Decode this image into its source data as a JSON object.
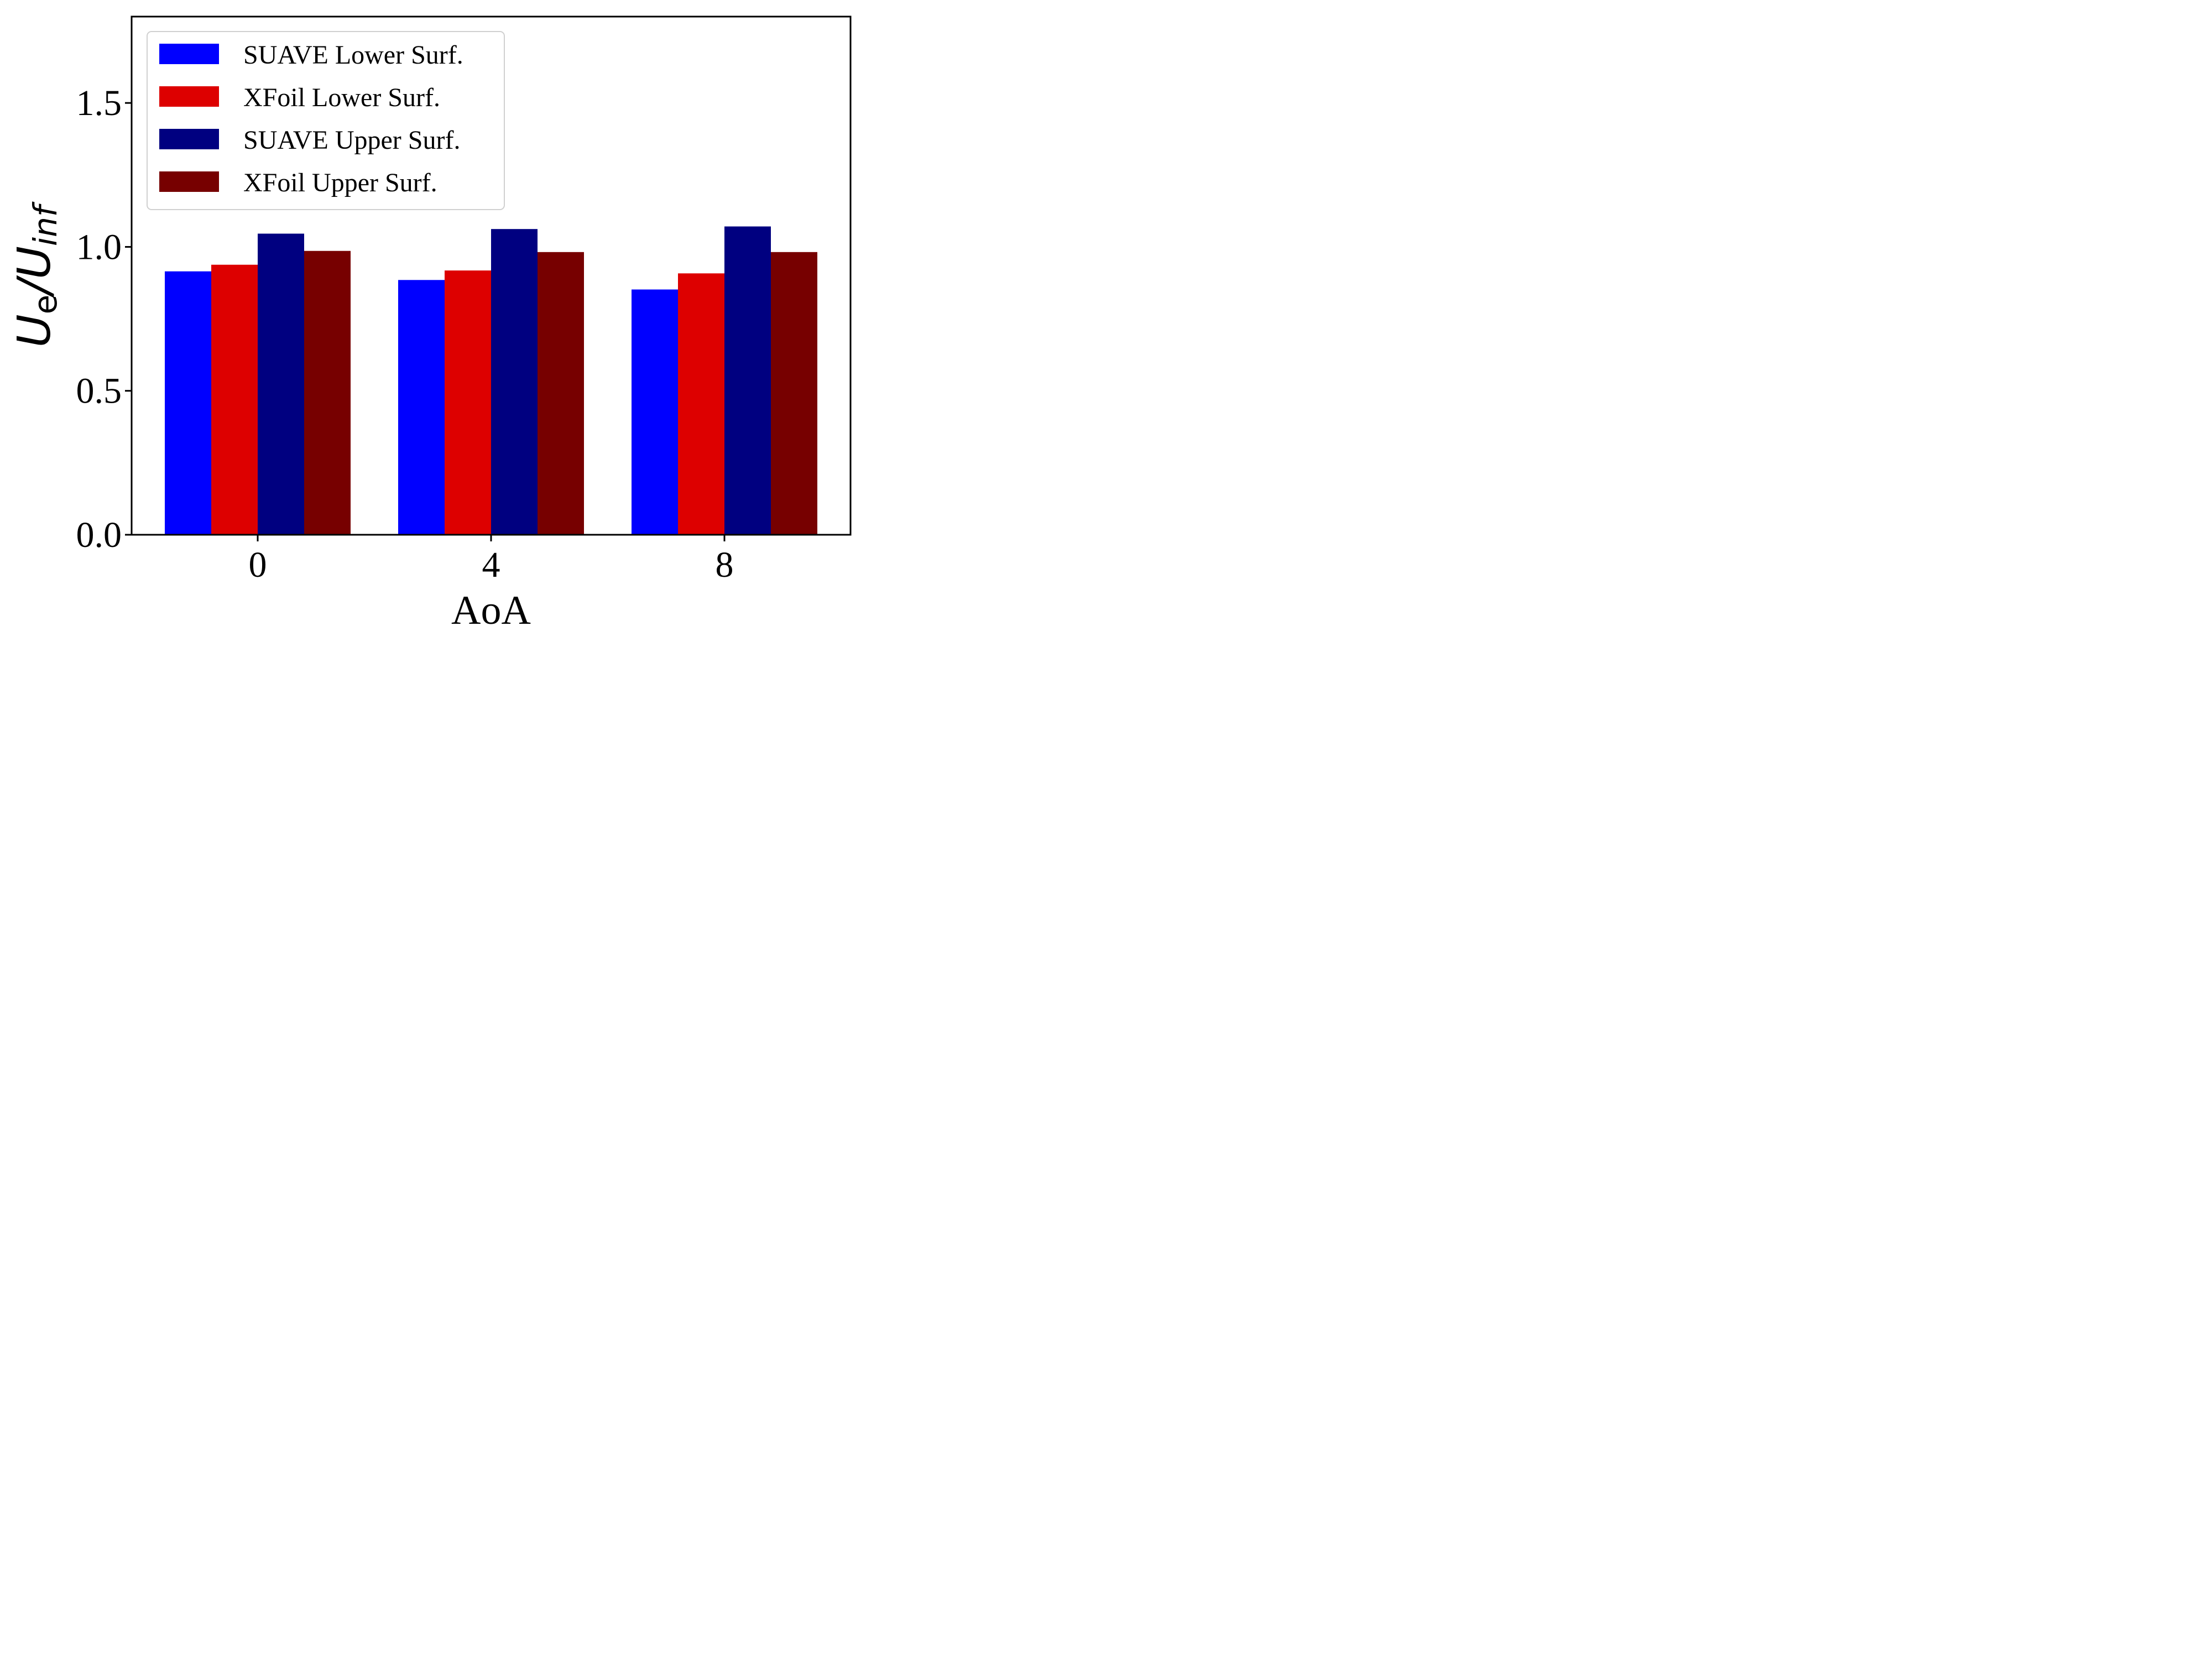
{
  "chart_data": {
    "type": "bar",
    "xlabel": "AoA",
    "ylabel": {
      "main": "U",
      "sub1": "e",
      "slash": "/",
      "main2": "U",
      "sub2": "inf"
    },
    "categories": [
      "0",
      "4",
      "8"
    ],
    "ylim": [
      0,
      1.8
    ],
    "yticks": [
      "0.0",
      "0.5",
      "1.0",
      "1.5"
    ],
    "ytick_values": [
      0,
      0.5,
      1.0,
      1.5
    ],
    "grid": false,
    "legend_position": "top-left",
    "series": [
      {
        "name": "SUAVE Lower Surf.",
        "color": "#0000ff",
        "values": [
          0.915,
          0.885,
          0.852
        ]
      },
      {
        "name": "XFoil Lower Surf.",
        "color": "#dd0000",
        "values": [
          0.938,
          0.918,
          0.908
        ]
      },
      {
        "name": "SUAVE Upper Surf.",
        "color": "#000080",
        "values": [
          1.046,
          1.062,
          1.071
        ]
      },
      {
        "name": "XFoil Upper Surf.",
        "color": "#770000",
        "values": [
          0.986,
          0.982,
          0.982
        ]
      }
    ]
  }
}
